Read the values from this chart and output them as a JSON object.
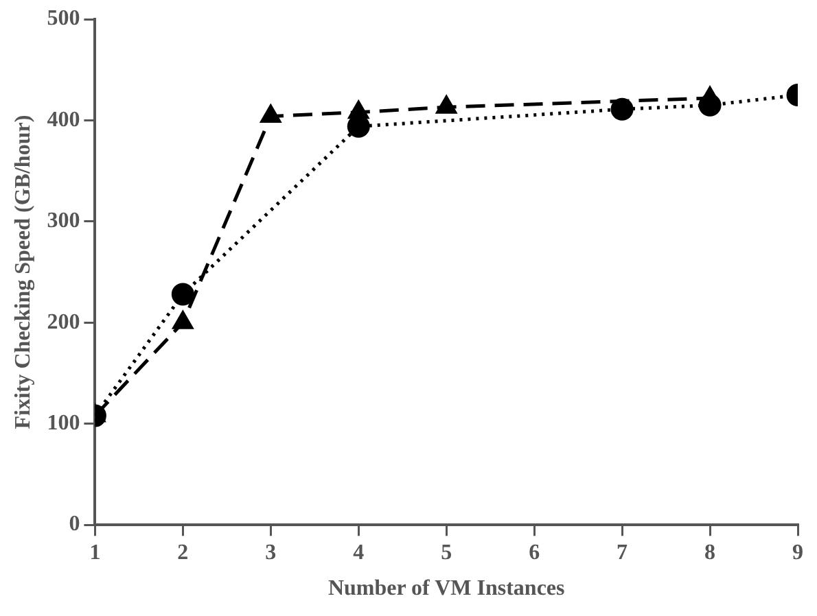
{
  "chart_data": {
    "type": "line",
    "xlabel": "Number of VM Instances",
    "ylabel": "Fixity Checking Speed (GB/hour)",
    "xlim": [
      1,
      9
    ],
    "xticks": [
      1,
      2,
      3,
      4,
      5,
      6,
      7,
      8,
      9
    ],
    "ylim": [
      0,
      500
    ],
    "yticks": [
      0,
      100,
      200,
      300,
      400,
      500
    ],
    "grid": false,
    "legend": false,
    "series": [
      {
        "color": "#000000",
        "marker": "circle",
        "line_style": "dotted",
        "x": [
          1,
          2,
          4,
          7,
          8,
          9
        ],
        "values": [
          108,
          228,
          394,
          411,
          415,
          425
        ]
      },
      {
        "color": "#000000",
        "marker": "triangle",
        "line_style": "dashed",
        "x": [
          1,
          2,
          3,
          4,
          5,
          8
        ],
        "values": [
          108,
          200,
          404,
          408,
          413,
          422
        ]
      }
    ]
  }
}
